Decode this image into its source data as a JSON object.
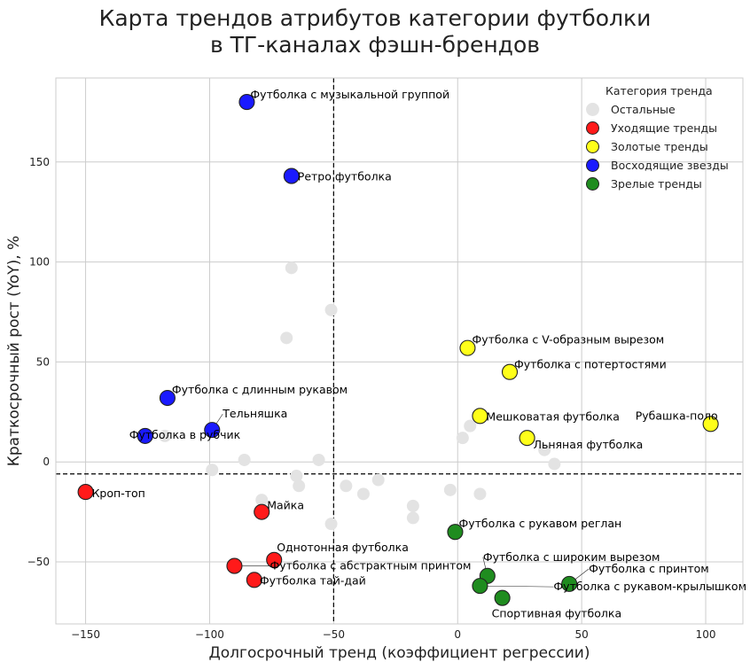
{
  "chart_data": {
    "type": "scatter",
    "title": "Карта трендов атрибутов категории футболки в ТГ-каналах фэшн-брендов",
    "title_lines": [
      "Карта трендов атрибутов категории футболки",
      "в ТГ-каналах фэшн-брендов"
    ],
    "xlabel": "Долгосрочный тренд (коэффициент регрессии)",
    "ylabel": "Краткосрочный рост (YoY), %",
    "xlim": [
      -162,
      115
    ],
    "ylim": [
      -81,
      192
    ],
    "xticks": [
      -150,
      -100,
      -50,
      0,
      50,
      100
    ],
    "yticks": [
      -50,
      0,
      50,
      100,
      150
    ],
    "grid": true,
    "reference_lines": {
      "x": -50,
      "y": -6
    },
    "legend": {
      "title": "Категория тренда",
      "placement": "top-right",
      "entries": [
        {
          "key": "other",
          "label": "Остальные"
        },
        {
          "key": "leaving",
          "label": "Уходящие тренды"
        },
        {
          "key": "golden",
          "label": "Золотые тренды"
        },
        {
          "key": "rising",
          "label": "Восходящие звезды"
        },
        {
          "key": "mature",
          "label": "Зрелые тренды"
        }
      ]
    },
    "colors": {
      "other": "#e3e3e3",
      "leaving": "#ff1a1a",
      "golden": "#ffff1a",
      "rising": "#1a1aff",
      "mature": "#1f8c1f",
      "edge": "#222222"
    },
    "other_points": [
      [
        -67,
        97
      ],
      [
        -51,
        76
      ],
      [
        -69,
        62
      ],
      [
        -118,
        13
      ],
      [
        -99,
        -4
      ],
      [
        -86,
        1
      ],
      [
        -65,
        -7
      ],
      [
        -64,
        -12
      ],
      [
        -56,
        1
      ],
      [
        -45,
        -12
      ],
      [
        -38,
        -16
      ],
      [
        -32,
        -9
      ],
      [
        -79,
        -19
      ],
      [
        -51,
        -31
      ],
      [
        -18,
        -22
      ],
      [
        -18,
        -28
      ],
      [
        -3,
        -14
      ],
      [
        9,
        -16
      ],
      [
        5,
        18
      ],
      [
        2,
        12
      ],
      [
        35,
        6
      ],
      [
        39,
        -1
      ]
    ],
    "series": [
      {
        "key": "leaving",
        "name": "Уходящие тренды",
        "points": [
          {
            "x": -150,
            "y": -15,
            "label": "Кроп-топ"
          },
          {
            "x": -79,
            "y": -25,
            "label": "Майка"
          },
          {
            "x": -74,
            "y": -49,
            "label": "Однотонная футболка"
          },
          {
            "x": -90,
            "y": -52,
            "label": "Футболка с абстрактным принтом"
          },
          {
            "x": -82,
            "y": -59,
            "label": "Футболка тай-дай"
          }
        ]
      },
      {
        "key": "golden",
        "name": "Золотые тренды",
        "points": [
          {
            "x": 4,
            "y": 57,
            "label": "Футболка с V-образным вырезом"
          },
          {
            "x": 21,
            "y": 45,
            "label": "Футболка с потертостями"
          },
          {
            "x": 9,
            "y": 23,
            "label": "Мешковатая футболка"
          },
          {
            "x": 28,
            "y": 12,
            "label": "Льняная футболка"
          },
          {
            "x": 102,
            "y": 19,
            "label": "Рубашка-поло"
          }
        ]
      },
      {
        "key": "rising",
        "name": "Восходящие звезды",
        "points": [
          {
            "x": -85,
            "y": 180,
            "label": "Футболка с музыкальной группой"
          },
          {
            "x": -67,
            "y": 143,
            "label": "Ретро футболка"
          },
          {
            "x": -117,
            "y": 32,
            "label": "Футболка с длинным рукавом"
          },
          {
            "x": -99,
            "y": 16,
            "label": "Тельняшка"
          },
          {
            "x": -126,
            "y": 13,
            "label": "Футболка в рубчик"
          }
        ]
      },
      {
        "key": "mature",
        "name": "Зрелые тренды",
        "points": [
          {
            "x": -1,
            "y": -35,
            "label": "Футболка с рукавом реглан"
          },
          {
            "x": 12,
            "y": -57,
            "label": "Футболка с широким вырезом"
          },
          {
            "x": 45,
            "y": -61,
            "label": "Футболка с принтом"
          },
          {
            "x": 9,
            "y": -62,
            "label": "Футболка с рукавом-крылышком"
          },
          {
            "x": 18,
            "y": -68,
            "label": "Спортивная футболка"
          }
        ]
      }
    ]
  }
}
